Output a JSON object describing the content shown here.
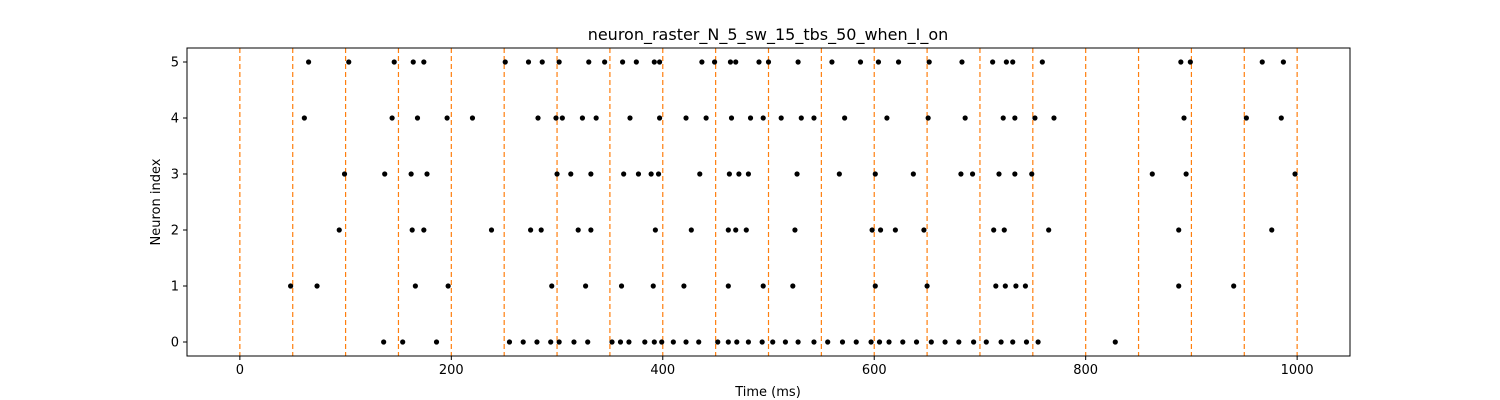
{
  "chart_data": {
    "type": "scatter",
    "title": "neuron_raster_N_5_sw_15_tbs_50_when_I_on",
    "xlabel": "Time (ms)",
    "ylabel": "Neuron index",
    "xlim": [
      -50,
      1050
    ],
    "ylim": [
      -0.25,
      5.25
    ],
    "xticks": [
      0,
      200,
      400,
      600,
      800,
      1000
    ],
    "yticks": [
      0,
      1,
      2,
      3,
      4,
      5
    ],
    "grid": false,
    "legend": "none",
    "marker_color": "#000000",
    "vline_color": "#ff7f0e",
    "vlines": [
      0,
      50,
      100,
      150,
      200,
      250,
      300,
      350,
      400,
      450,
      500,
      550,
      600,
      650,
      700,
      750,
      800,
      850,
      900,
      950,
      1000
    ],
    "series": [
      {
        "neuron": 0,
        "spikes": [
          136,
          154,
          186,
          255,
          268,
          281,
          294,
          302,
          316,
          329,
          352,
          360,
          368,
          383,
          392,
          399,
          410,
          422,
          434,
          452,
          462,
          470,
          481,
          494,
          504,
          516,
          528,
          543,
          556,
          570,
          583,
          597,
          605,
          614,
          627,
          640,
          654,
          667,
          680,
          694,
          706,
          720,
          731,
          744,
          755,
          828
        ]
      },
      {
        "neuron": 1,
        "spikes": [
          48,
          73,
          166,
          197,
          295,
          327,
          361,
          391,
          420,
          462,
          495,
          523,
          601,
          650,
          715,
          724,
          734,
          743,
          888,
          940
        ]
      },
      {
        "neuron": 2,
        "spikes": [
          94,
          163,
          174,
          238,
          275,
          285,
          320,
          332,
          393,
          427,
          462,
          469,
          479,
          525,
          598,
          606,
          620,
          647,
          713,
          723,
          765,
          888,
          976
        ]
      },
      {
        "neuron": 3,
        "spikes": [
          99,
          137,
          162,
          177,
          300,
          313,
          332,
          363,
          377,
          389,
          396,
          435,
          463,
          472,
          481,
          527,
          567,
          601,
          637,
          682,
          693,
          718,
          733,
          749,
          863,
          895,
          998
        ]
      },
      {
        "neuron": 4,
        "spikes": [
          61,
          144,
          168,
          196,
          220,
          282,
          299,
          305,
          324,
          337,
          369,
          397,
          422,
          441,
          465,
          483,
          495,
          512,
          531,
          543,
          572,
          612,
          651,
          686,
          722,
          733,
          752,
          770,
          893,
          952,
          985
        ]
      },
      {
        "neuron": 5,
        "spikes": [
          65,
          103,
          146,
          164,
          174,
          251,
          273,
          286,
          302,
          330,
          345,
          362,
          375,
          392,
          397,
          437,
          449,
          464,
          469,
          491,
          500,
          528,
          560,
          587,
          604,
          623,
          652,
          683,
          712,
          725,
          731,
          759,
          890,
          899,
          967,
          987
        ]
      }
    ]
  }
}
